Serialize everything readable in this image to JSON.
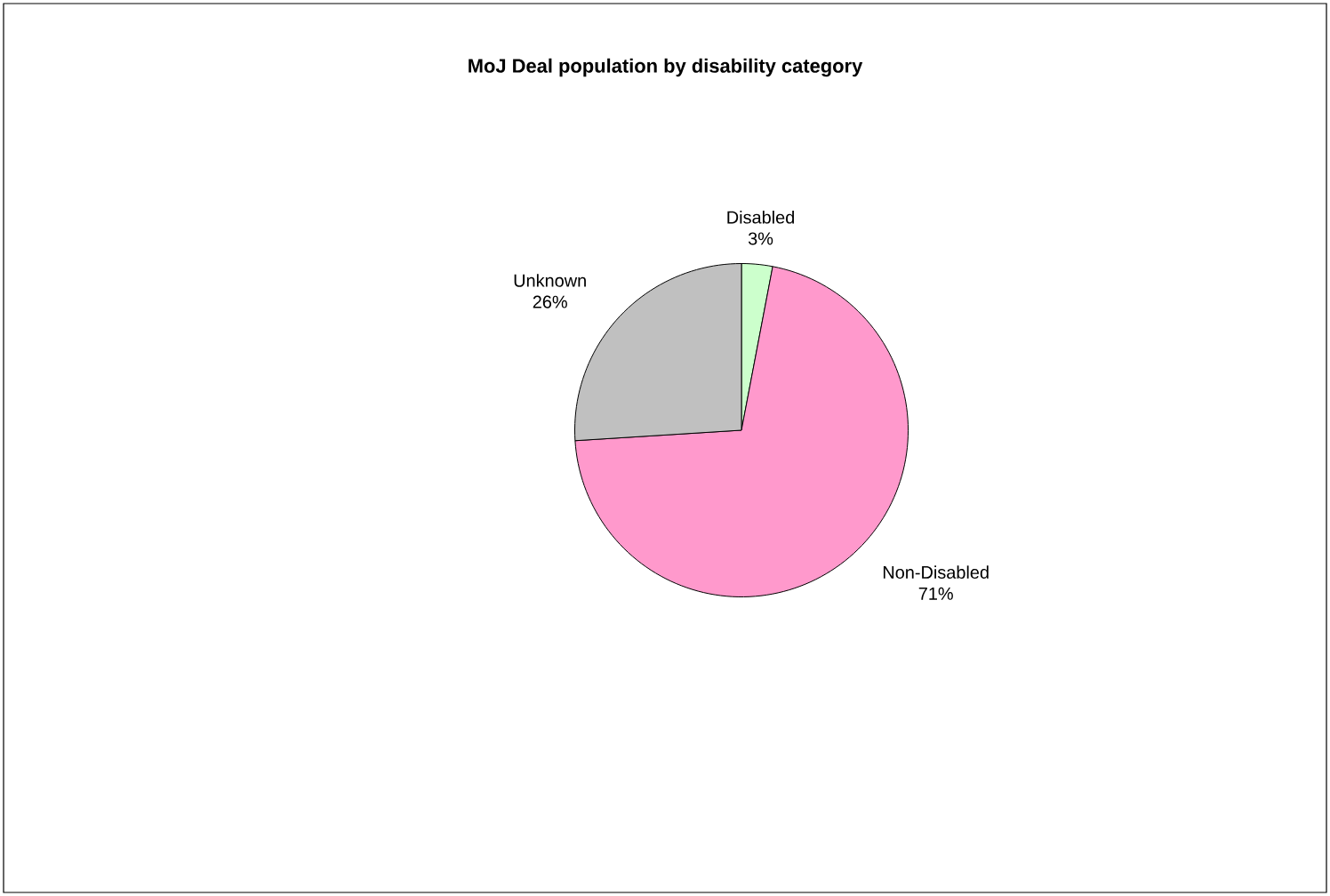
{
  "chart_data": {
    "type": "pie",
    "title": "MoJ Deal population by disability category",
    "categories": [
      "Disabled",
      "Non-Disabled",
      "Unknown"
    ],
    "values": [
      3,
      71,
      26
    ],
    "value_labels": [
      "3%",
      "71%",
      "26%"
    ],
    "colors": [
      "#ccffcc",
      "#ff99cc",
      "#c0c0c0"
    ]
  }
}
